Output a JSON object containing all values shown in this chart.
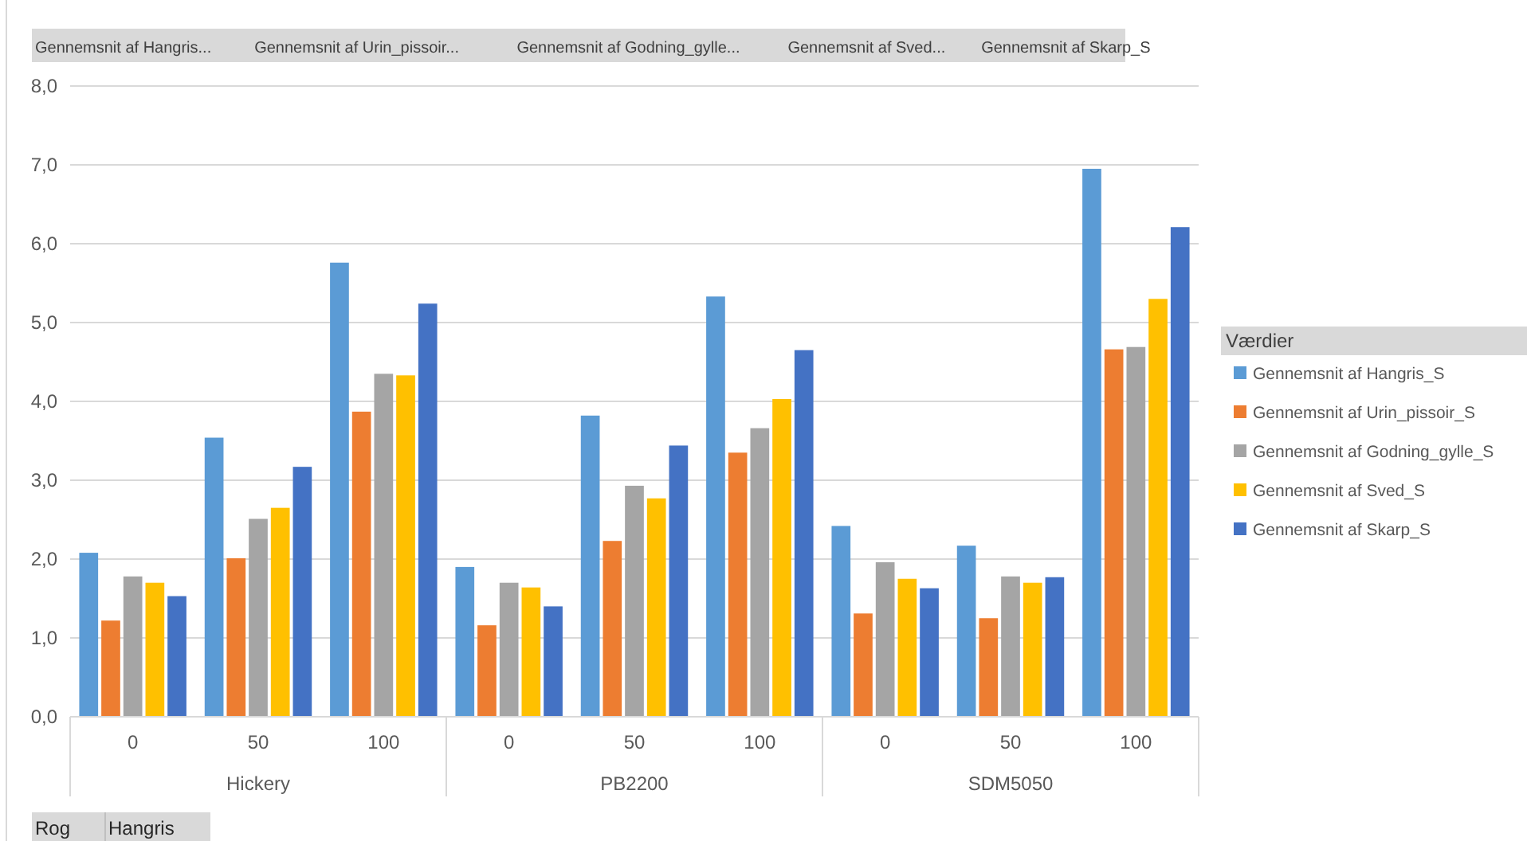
{
  "chart_data": {
    "type": "bar",
    "categories": [
      "0",
      "50",
      "100",
      "0",
      "50",
      "100",
      "0",
      "50",
      "100"
    ],
    "series": [
      {
        "name": "Gennemsnit af Hangris_S",
        "color": "#5b9bd5",
        "values": [
          2.08,
          3.54,
          5.76,
          1.9,
          3.82,
          5.33,
          2.42,
          2.17,
          6.95
        ]
      },
      {
        "name": "Gennemsnit af Urin_pissoir_S",
        "color": "#ed7d31",
        "values": [
          1.22,
          2.01,
          3.87,
          1.16,
          2.23,
          3.35,
          1.31,
          1.25,
          4.66
        ]
      },
      {
        "name": "Gennemsnit af Godning_gylle_S",
        "color": "#a5a5a5",
        "values": [
          1.78,
          2.51,
          4.35,
          1.7,
          2.93,
          3.66,
          1.96,
          1.78,
          4.69
        ]
      },
      {
        "name": "Gennemsnit af Sved_S",
        "color": "#ffc000",
        "values": [
          1.7,
          2.65,
          4.33,
          1.64,
          2.77,
          4.03,
          1.75,
          1.7,
          5.3
        ]
      },
      {
        "name": "Gennemsnit af Skarp_S",
        "color": "#4472c4",
        "values": [
          1.53,
          3.17,
          5.24,
          1.4,
          3.44,
          4.65,
          1.63,
          1.77,
          6.21
        ]
      }
    ],
    "ylim": [
      0,
      8
    ],
    "yticks": [
      {
        "value": 0,
        "label": "0,0"
      },
      {
        "value": 1,
        "label": "1,0"
      },
      {
        "value": 2,
        "label": "2,0"
      },
      {
        "value": 3,
        "label": "3,0"
      },
      {
        "value": 4,
        "label": "4,0"
      },
      {
        "value": 5,
        "label": "5,0"
      },
      {
        "value": 6,
        "label": "6,0"
      },
      {
        "value": 7,
        "label": "7,0"
      },
      {
        "value": 8,
        "label": "8,0"
      }
    ],
    "grid": "y",
    "legend": "right",
    "legend_title": "Værdier",
    "annotations": [
      "Gennemsnit af Hangris...",
      "Gennemsnit af Urin_pissoir...",
      "Gennemsnit af Godning_gylle...",
      "Gennemsnit af Sved...",
      "Gennemsnit af Skarp_S",
      "Hickery",
      "PB2200",
      "SDM5050",
      "Rog",
      "Hangris"
    ]
  }
}
